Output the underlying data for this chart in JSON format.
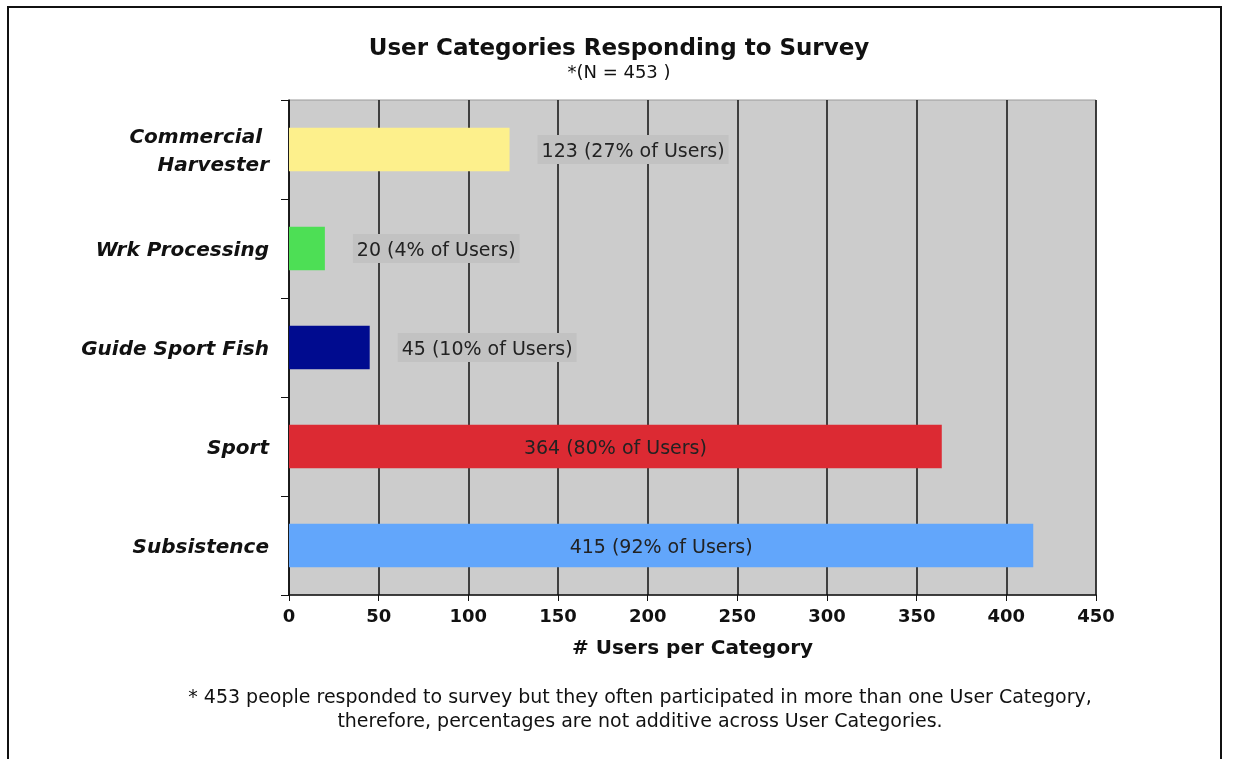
{
  "chart_data": {
    "type": "bar",
    "orientation": "horizontal",
    "title": "User Categories Responding to Survey",
    "subtitle": "*(N = 453 )",
    "xlabel": "# Users per Category",
    "categories": [
      "Commercial Harvester",
      "Wrk Processing",
      "Guide Sport Fish",
      "Sport",
      "Subsistence"
    ],
    "values": [
      123,
      20,
      45,
      364,
      415
    ],
    "colors": [
      "#fdf08c",
      "#4ddf55",
      "#000b8f",
      "#dc2a33",
      "#62a6fb"
    ],
    "value_labels": [
      "123 (27% of Users)",
      "20 (4% of Users)",
      "45 (10% of Users)",
      "364 (80% of Users)",
      "415 (92% of Users)"
    ],
    "xlim": [
      0,
      450
    ],
    "xticks": [
      0,
      50,
      100,
      150,
      200,
      250,
      300,
      350,
      400,
      450
    ],
    "grid": "x",
    "annotations": [
      "* 453 people responded to survey but they often participated in more than one User Category, therefore, percentages are not additive across User Categories."
    ]
  }
}
